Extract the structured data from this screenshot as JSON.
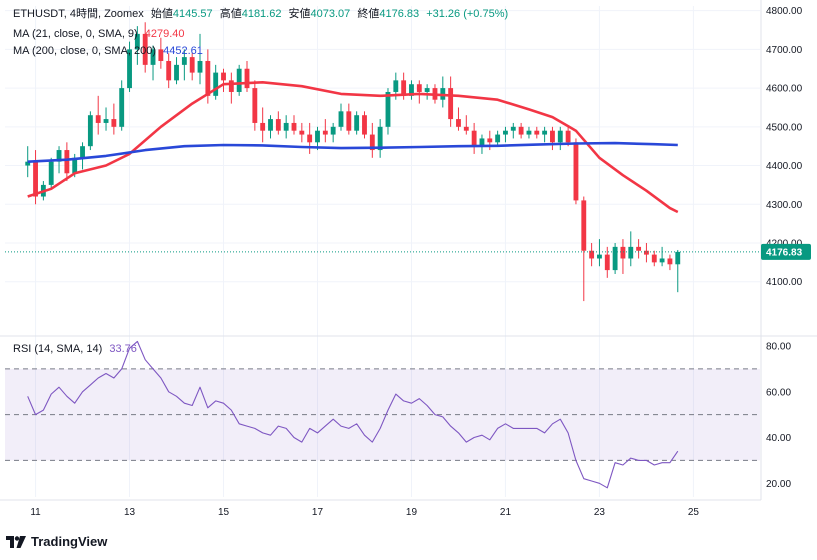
{
  "legend": {
    "symbol": "ETHUSDT, 4時間, Zoomex",
    "open_label": "始値",
    "open": "4145.57",
    "high_label": "高値",
    "high": "4181.62",
    "low_label": "安値",
    "low": "4073.07",
    "close_label": "終値",
    "close": "4176.83",
    "change": "+31.26 (+0.75%)"
  },
  "ma21": {
    "label": "MA (21, close, 0, SMA, 9)",
    "value": "4279.40"
  },
  "ma200": {
    "label": "MA (200, close, 0, SMA, 200)",
    "value": "4452.61"
  },
  "rsi": {
    "label": "RSI (14, SMA, 14)",
    "value": "33.76"
  },
  "last_price_tag": "4176.83",
  "brand": "TradingView",
  "colors": {
    "up": "#089981",
    "down": "#f23645",
    "ma21": "#f23645",
    "ma200": "#2948d8",
    "rsi": "#7e57c2"
  },
  "chart_data": [
    {
      "type": "candlestick",
      "title": "ETHUSDT, 4時間, Zoomex",
      "y_ticks": [
        4100,
        4200,
        4300,
        4400,
        4500,
        4600,
        4700,
        4800
      ],
      "y_tick_labels": [
        "4100.00",
        "4200.00",
        "4300.00",
        "4400.00",
        "4500.00",
        "4600.00",
        "4700.00",
        "4800.00"
      ],
      "ylim": [
        3965,
        4812
      ],
      "x_ticks": [
        {
          "label": "11",
          "x": 1
        },
        {
          "label": "13",
          "x": 13
        },
        {
          "label": "15",
          "x": 25
        },
        {
          "label": "17",
          "x": 37
        },
        {
          "label": "19",
          "x": 49
        },
        {
          "label": "21",
          "x": 61
        },
        {
          "label": "23",
          "x": 73
        },
        {
          "label": "25",
          "x": 85
        }
      ],
      "xlim": [
        -2.9,
        93.5
      ],
      "candles": [
        [
          0,
          4400,
          4450,
          4370,
          4410
        ],
        [
          1,
          4410,
          4440,
          4300,
          4320
        ],
        [
          2,
          4320,
          4360,
          4310,
          4350
        ],
        [
          3,
          4350,
          4420,
          4340,
          4410
        ],
        [
          4,
          4410,
          4450,
          4380,
          4440
        ],
        [
          5,
          4440,
          4460,
          4360,
          4380
        ],
        [
          6,
          4380,
          4430,
          4370,
          4420
        ],
        [
          7,
          4420,
          4460,
          4390,
          4450
        ],
        [
          8,
          4450,
          4540,
          4440,
          4530
        ],
        [
          9,
          4530,
          4580,
          4480,
          4510
        ],
        [
          10,
          4510,
          4550,
          4490,
          4520
        ],
        [
          11,
          4520,
          4560,
          4480,
          4500
        ],
        [
          12,
          4500,
          4620,
          4490,
          4600
        ],
        [
          13,
          4600,
          4720,
          4590,
          4700
        ],
        [
          14,
          4700,
          4760,
          4660,
          4740
        ],
        [
          15,
          4740,
          4770,
          4640,
          4660
        ],
        [
          16,
          4660,
          4710,
          4620,
          4700
        ],
        [
          17,
          4700,
          4730,
          4650,
          4670
        ],
        [
          18,
          4670,
          4690,
          4600,
          4620
        ],
        [
          19,
          4620,
          4680,
          4610,
          4660
        ],
        [
          20,
          4660,
          4700,
          4620,
          4680
        ],
        [
          21,
          4680,
          4690,
          4620,
          4640
        ],
        [
          22,
          4640,
          4740,
          4610,
          4670
        ],
        [
          23,
          4670,
          4700,
          4560,
          4580
        ],
        [
          24,
          4580,
          4660,
          4570,
          4640
        ],
        [
          25,
          4640,
          4650,
          4590,
          4620
        ],
        [
          26,
          4620,
          4640,
          4560,
          4590
        ],
        [
          27,
          4590,
          4660,
          4580,
          4650
        ],
        [
          28,
          4650,
          4670,
          4590,
          4600
        ],
        [
          29,
          4600,
          4620,
          4490,
          4510
        ],
        [
          30,
          4510,
          4550,
          4460,
          4490
        ],
        [
          31,
          4490,
          4530,
          4470,
          4520
        ],
        [
          32,
          4520,
          4540,
          4480,
          4490
        ],
        [
          33,
          4490,
          4530,
          4470,
          4510
        ],
        [
          34,
          4510,
          4530,
          4480,
          4490
        ],
        [
          35,
          4490,
          4510,
          4460,
          4480
        ],
        [
          36,
          4480,
          4510,
          4430,
          4460
        ],
        [
          37,
          4460,
          4500,
          4440,
          4490
        ],
        [
          38,
          4490,
          4520,
          4460,
          4480
        ],
        [
          39,
          4480,
          4510,
          4460,
          4500
        ],
        [
          40,
          4500,
          4560,
          4490,
          4540
        ],
        [
          41,
          4540,
          4560,
          4480,
          4490
        ],
        [
          42,
          4490,
          4540,
          4480,
          4530
        ],
        [
          43,
          4530,
          4540,
          4470,
          4480
        ],
        [
          44,
          4480,
          4510,
          4420,
          4440
        ],
        [
          45,
          4440,
          4520,
          4420,
          4500
        ],
        [
          46,
          4500,
          4600,
          4480,
          4590
        ],
        [
          47,
          4590,
          4640,
          4570,
          4620
        ],
        [
          48,
          4620,
          4640,
          4570,
          4580
        ],
        [
          49,
          4580,
          4620,
          4570,
          4610
        ],
        [
          50,
          4610,
          4620,
          4560,
          4590
        ],
        [
          51,
          4590,
          4610,
          4570,
          4600
        ],
        [
          52,
          4600,
          4610,
          4560,
          4570
        ],
        [
          53,
          4570,
          4630,
          4550,
          4600
        ],
        [
          54,
          4600,
          4630,
          4500,
          4520
        ],
        [
          55,
          4520,
          4550,
          4490,
          4500
        ],
        [
          56,
          4500,
          4530,
          4480,
          4490
        ],
        [
          57,
          4490,
          4510,
          4430,
          4450
        ],
        [
          58,
          4450,
          4480,
          4430,
          4470
        ],
        [
          59,
          4470,
          4490,
          4440,
          4460
        ],
        [
          60,
          4460,
          4490,
          4450,
          4480
        ],
        [
          61,
          4480,
          4500,
          4460,
          4490
        ],
        [
          62,
          4490,
          4510,
          4470,
          4500
        ],
        [
          63,
          4500,
          4510,
          4470,
          4480
        ],
        [
          64,
          4480,
          4500,
          4470,
          4490
        ],
        [
          65,
          4490,
          4500,
          4470,
          4480
        ],
        [
          66,
          4480,
          4500,
          4460,
          4490
        ],
        [
          67,
          4490,
          4500,
          4440,
          4460
        ],
        [
          68,
          4460,
          4500,
          4440,
          4490
        ],
        [
          69,
          4490,
          4500,
          4450,
          4460
        ],
        [
          70,
          4460,
          4470,
          4300,
          4310
        ],
        [
          71,
          4310,
          4320,
          4050,
          4180
        ],
        [
          72,
          4180,
          4200,
          4140,
          4160
        ],
        [
          73,
          4160,
          4210,
          4140,
          4170
        ],
        [
          74,
          4170,
          4190,
          4110,
          4130
        ],
        [
          75,
          4130,
          4200,
          4120,
          4190
        ],
        [
          76,
          4190,
          4210,
          4120,
          4160
        ],
        [
          77,
          4160,
          4230,
          4140,
          4190
        ],
        [
          78,
          4190,
          4210,
          4160,
          4180
        ],
        [
          79,
          4180,
          4200,
          4150,
          4170
        ],
        [
          80,
          4170,
          4180,
          4140,
          4150
        ],
        [
          81,
          4150,
          4190,
          4140,
          4160
        ],
        [
          82,
          4160,
          4170,
          4130,
          4145
        ],
        [
          83,
          4145,
          4182,
          4073,
          4177
        ]
      ],
      "series": [
        {
          "name": "MA (21, close, 0, SMA, 9)",
          "points": [
            [
              0,
              4320
            ],
            [
              3,
              4340
            ],
            [
              6,
              4380
            ],
            [
              10,
              4400
            ],
            [
              13,
              4430
            ],
            [
              17,
              4500
            ],
            [
              21,
              4560
            ],
            [
              25,
              4610
            ],
            [
              30,
              4615
            ],
            [
              35,
              4605
            ],
            [
              40,
              4585
            ],
            [
              45,
              4580
            ],
            [
              50,
              4585
            ],
            [
              55,
              4580
            ],
            [
              60,
              4570
            ],
            [
              64,
              4545
            ],
            [
              67,
              4525
            ],
            [
              70,
              4490
            ],
            [
              73,
              4420
            ],
            [
              76,
              4375
            ],
            [
              79,
              4335
            ],
            [
              82,
              4290
            ],
            [
              83,
              4280
            ]
          ]
        },
        {
          "name": "MA (200, close, 0, SMA, 200)",
          "points": [
            [
              0,
              4410
            ],
            [
              5,
              4415
            ],
            [
              10,
              4425
            ],
            [
              15,
              4440
            ],
            [
              20,
              4450
            ],
            [
              25,
              4453
            ],
            [
              30,
              4452
            ],
            [
              35,
              4448
            ],
            [
              40,
              4445
            ],
            [
              45,
              4446
            ],
            [
              50,
              4448
            ],
            [
              55,
              4450
            ],
            [
              60,
              4451
            ],
            [
              65,
              4454
            ],
            [
              70,
              4457
            ],
            [
              75,
              4458
            ],
            [
              80,
              4455
            ],
            [
              83,
              4453
            ]
          ]
        }
      ]
    },
    {
      "type": "line",
      "title": "RSI (14, SMA, 14)",
      "y_ticks": [
        20,
        40,
        60,
        80
      ],
      "y_tick_labels": [
        "20.00",
        "40.00",
        "60.00",
        "80.00"
      ],
      "bands": {
        "upper": 70,
        "middle": 50,
        "lower": 30
      },
      "ylim": [
        14,
        83.5
      ],
      "xlim": [
        -2.9,
        93.5
      ],
      "values": [
        [
          0,
          58
        ],
        [
          1,
          50
        ],
        [
          2,
          52
        ],
        [
          3,
          59
        ],
        [
          4,
          62
        ],
        [
          5,
          58
        ],
        [
          6,
          55
        ],
        [
          7,
          60
        ],
        [
          8,
          63
        ],
        [
          9,
          66
        ],
        [
          10,
          68
        ],
        [
          11,
          66
        ],
        [
          12,
          70
        ],
        [
          13,
          79
        ],
        [
          14,
          82
        ],
        [
          15,
          74
        ],
        [
          16,
          70
        ],
        [
          17,
          66
        ],
        [
          18,
          60
        ],
        [
          19,
          58
        ],
        [
          20,
          55
        ],
        [
          21,
          54
        ],
        [
          22,
          62
        ],
        [
          23,
          53
        ],
        [
          24,
          56
        ],
        [
          25,
          55
        ],
        [
          26,
          52
        ],
        [
          27,
          46
        ],
        [
          28,
          45
        ],
        [
          29,
          44
        ],
        [
          30,
          42
        ],
        [
          31,
          41
        ],
        [
          32,
          45
        ],
        [
          33,
          44
        ],
        [
          34,
          40
        ],
        [
          35,
          38
        ],
        [
          36,
          44
        ],
        [
          37,
          42
        ],
        [
          38,
          45
        ],
        [
          39,
          48
        ],
        [
          40,
          45
        ],
        [
          41,
          44
        ],
        [
          42,
          46
        ],
        [
          43,
          41
        ],
        [
          44,
          38
        ],
        [
          45,
          44
        ],
        [
          46,
          52
        ],
        [
          47,
          59
        ],
        [
          48,
          56
        ],
        [
          49,
          55
        ],
        [
          50,
          57
        ],
        [
          51,
          54
        ],
        [
          52,
          50
        ],
        [
          53,
          49
        ],
        [
          54,
          45
        ],
        [
          55,
          42
        ],
        [
          56,
          38
        ],
        [
          57,
          40
        ],
        [
          58,
          41
        ],
        [
          59,
          39
        ],
        [
          60,
          44
        ],
        [
          61,
          46
        ],
        [
          62,
          44
        ],
        [
          63,
          44
        ],
        [
          64,
          44
        ],
        [
          65,
          44
        ],
        [
          66,
          42
        ],
        [
          67,
          46
        ],
        [
          68,
          48
        ],
        [
          69,
          42
        ],
        [
          70,
          30
        ],
        [
          71,
          22
        ],
        [
          72,
          21
        ],
        [
          73,
          20
        ],
        [
          74,
          18
        ],
        [
          75,
          29
        ],
        [
          76,
          28
        ],
        [
          77,
          31
        ],
        [
          78,
          30
        ],
        [
          79,
          30
        ],
        [
          80,
          28
        ],
        [
          81,
          29
        ],
        [
          82,
          29
        ],
        [
          83,
          34
        ]
      ]
    }
  ]
}
